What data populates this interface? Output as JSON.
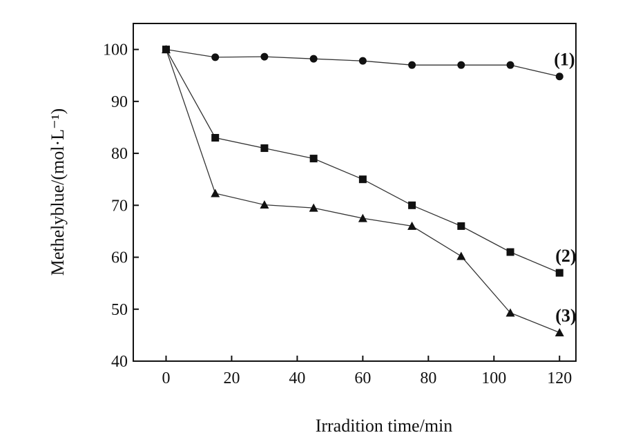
{
  "chart_data": {
    "type": "line",
    "xlabel": "Irradition time/min",
    "ylabel": "Methelyblue/(mol·L⁻¹)",
    "xlim": [
      -10,
      125
    ],
    "ylim": [
      40,
      105
    ],
    "x_ticks": [
      0,
      20,
      40,
      60,
      80,
      100,
      120
    ],
    "y_ticks": [
      40,
      50,
      60,
      70,
      80,
      90,
      100
    ],
    "grid": false,
    "legend": "none",
    "series": [
      {
        "name": "(1)",
        "marker": "circle",
        "x": [
          0,
          15,
          30,
          45,
          60,
          75,
          90,
          105,
          120
        ],
        "y": [
          100,
          98.5,
          98.6,
          98.2,
          97.8,
          97.0,
          97.0,
          97.0,
          94.8
        ]
      },
      {
        "name": "(2)",
        "marker": "square",
        "x": [
          0,
          15,
          30,
          45,
          60,
          75,
          90,
          105,
          120
        ],
        "y": [
          100,
          83.0,
          81.0,
          79.0,
          75.0,
          70.0,
          66.0,
          61.0,
          57.0
        ]
      },
      {
        "name": "(3)",
        "marker": "triangle",
        "x": [
          0,
          15,
          30,
          45,
          60,
          75,
          90,
          105,
          120
        ],
        "y": [
          100,
          72.3,
          70.1,
          69.5,
          67.5,
          66.0,
          60.2,
          49.3,
          45.5
        ]
      }
    ]
  }
}
